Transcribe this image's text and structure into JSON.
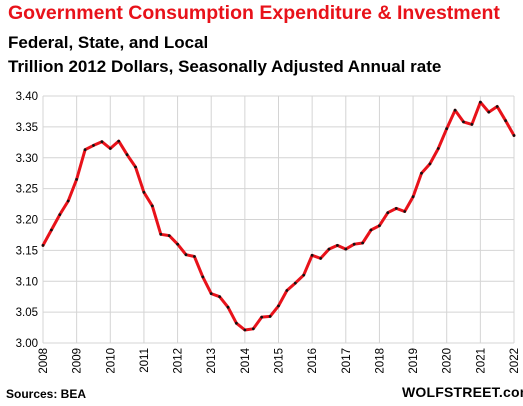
{
  "chart_data": {
    "type": "line",
    "title": "Government Consumption  Expenditure & Investment",
    "subtitle_lines": [
      "Federal, State, and Local",
      "Trillion 2012 Dollars, Seasonally Adjusted Annual rate"
    ],
    "xlabel": "",
    "ylabel": "",
    "ylim": [
      3.0,
      3.4
    ],
    "y_ticks": [
      "3.00",
      "3.05",
      "3.10",
      "3.15",
      "3.20",
      "3.25",
      "3.30",
      "3.35",
      "3.40"
    ],
    "x_ticks": [
      "2008",
      "2009",
      "2010",
      "2011",
      "2012",
      "2013",
      "2014",
      "2015",
      "2016",
      "2017",
      "2018",
      "2019",
      "2020",
      "2021",
      "2022"
    ],
    "grid": true,
    "series": [
      {
        "color": "#e8121a",
        "marker_color": "#111111",
        "values": [
          3.158,
          3.183,
          3.208,
          3.23,
          3.265,
          3.313,
          3.32,
          3.326,
          3.315,
          3.327,
          3.305,
          3.285,
          3.244,
          3.222,
          3.176,
          3.174,
          3.16,
          3.143,
          3.14,
          3.107,
          3.08,
          3.075,
          3.058,
          3.032,
          3.021,
          3.023,
          3.042,
          3.043,
          3.06,
          3.085,
          3.097,
          3.11,
          3.142,
          3.137,
          3.152,
          3.158,
          3.152,
          3.16,
          3.162,
          3.183,
          3.19,
          3.211,
          3.218,
          3.213,
          3.237,
          3.275,
          3.29,
          3.315,
          3.347,
          3.377,
          3.358,
          3.354,
          3.39,
          3.374,
          3.383,
          3.36,
          3.336
        ]
      }
    ]
  },
  "footer": {
    "source": "Sources: BEA",
    "watermark": "WOLFSTREET.com"
  }
}
